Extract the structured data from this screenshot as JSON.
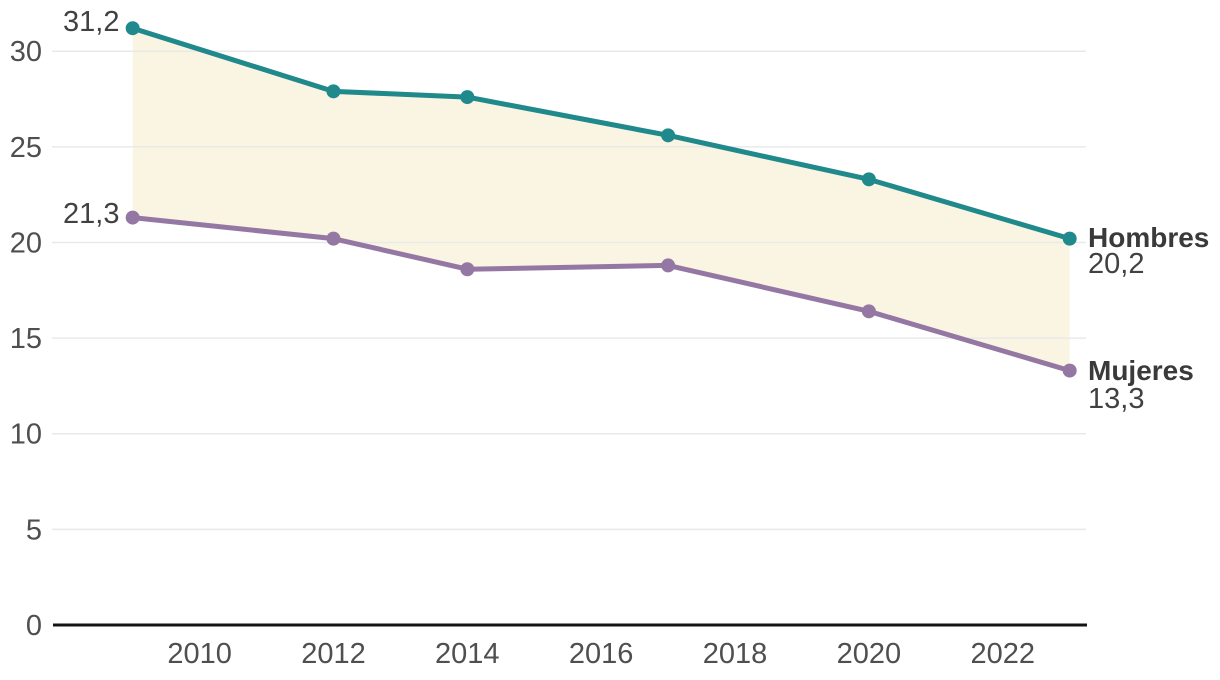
{
  "chart_data": {
    "type": "line",
    "x": [
      2009,
      2012,
      2014,
      2017,
      2020,
      2023
    ],
    "series": [
      {
        "name": "Hombres",
        "color": "#20898b",
        "values": [
          31.2,
          27.9,
          27.6,
          25.6,
          23.3,
          20.2
        ]
      },
      {
        "name": "Mujeres",
        "color": "#9478a3",
        "values": [
          21.3,
          20.2,
          18.6,
          18.8,
          16.4,
          13.3
        ]
      }
    ],
    "x_ticks": [
      2010,
      2012,
      2014,
      2016,
      2018,
      2020,
      2022
    ],
    "y_ticks": [
      0,
      5,
      10,
      15,
      20,
      25,
      30
    ],
    "ylim": [
      0,
      32
    ],
    "grid": true,
    "band_between_series": true,
    "band_fill": "#faf4e3",
    "legend_position": "right-inline",
    "decimal_separator": ","
  },
  "annotations": {
    "hombres_start": "31,2",
    "mujeres_start": "21,3",
    "hombres_label": "Hombres",
    "hombres_end": "20,2",
    "mujeres_label": "Mujeres",
    "mujeres_end": "13,3"
  },
  "colors": {
    "hombres_line": "#20898b",
    "mujeres_line": "#9478a3",
    "band_fill": "#faf4e3",
    "gridline": "#e9e9e9",
    "axis_line": "#141414",
    "tick_text": "#4f4f4f",
    "annotation_text": "#414141"
  }
}
